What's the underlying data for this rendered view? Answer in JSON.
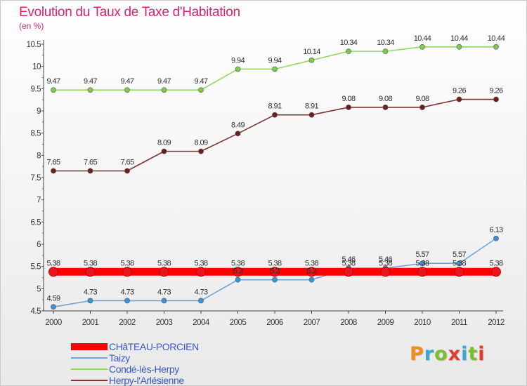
{
  "title": "Evolution du Taux de Taxe d'Habitation",
  "unit": "(en %)",
  "brand": {
    "text": "Proxiti",
    "colors": [
      "#f08c1c",
      "#3aa7d8",
      "#7bbf2a",
      "#e43c2a",
      "#3aa7d8",
      "#7bbf2a",
      "#e43c2a"
    ]
  },
  "chart_data": {
    "type": "line",
    "title": "Evolution du Taux de Taxe d'Habitation",
    "ylabel": "(en %)",
    "xlabel": "",
    "x": [
      "2000",
      "2001",
      "2002",
      "2003",
      "2004",
      "2005",
      "2006",
      "2007",
      "2008",
      "2009",
      "2010",
      "2011",
      "2012"
    ],
    "ylim": [
      4.5,
      10.5
    ],
    "yticks": [
      "4.5",
      "5",
      "5.5",
      "6",
      "6.5",
      "7",
      "7.5",
      "8",
      "8.5",
      "9",
      "9.5",
      "10",
      "10.5"
    ],
    "grid": false,
    "legend_position": "bottom-left",
    "series": [
      {
        "name": "CHâTEAU-PORCIEN",
        "color": "#ff0000",
        "marker_color": "#e8141e",
        "values": [
          5.38,
          5.38,
          5.38,
          5.38,
          5.38,
          5.38,
          5.38,
          5.38,
          5.38,
          5.38,
          5.38,
          5.38,
          5.38
        ],
        "labels": [
          "5.38",
          "5.38",
          "5.38",
          "5.38",
          "5.38",
          "5.38",
          "5.38",
          "5.38",
          "5.38",
          "5.38",
          "5.38",
          "5.38",
          "5.38"
        ]
      },
      {
        "name": "Taizy",
        "color": "#6ea3d4",
        "marker_color": "#3d8fd6",
        "values": [
          4.59,
          4.73,
          4.73,
          4.73,
          4.73,
          5.2,
          5.2,
          5.2,
          5.46,
          5.46,
          5.57,
          5.57,
          6.13
        ],
        "labels": [
          "4.59",
          "4.73",
          "4.73",
          "4.73",
          "4.73",
          "5.2",
          "5.2",
          "5.2",
          "5.46",
          "5.46",
          "5.57",
          "5.57",
          "6.13"
        ]
      },
      {
        "name": "Condé-lès-Herpy",
        "color": "#93d863",
        "marker_color": "#7cc94b",
        "values": [
          9.47,
          9.47,
          9.47,
          9.47,
          9.47,
          9.94,
          9.94,
          10.14,
          10.34,
          10.34,
          10.44,
          10.44,
          10.44
        ],
        "labels": [
          "9.47",
          "9.47",
          "9.47",
          "9.47",
          "9.47",
          "9.94",
          "9.94",
          "10.14",
          "10.34",
          "10.34",
          "10.44",
          "10.44",
          "10.44"
        ]
      },
      {
        "name": "Herpy-l'Arlésienne",
        "color": "#7e3535",
        "marker_color": "#6b1e1e",
        "values": [
          7.65,
          7.65,
          7.65,
          8.09,
          8.09,
          8.49,
          8.91,
          8.91,
          9.08,
          9.08,
          9.08,
          9.26,
          9.26
        ],
        "labels": [
          "7.65",
          "7.65",
          "7.65",
          "8.09",
          "8.09",
          "8.49",
          "8.91",
          "8.91",
          "9.08",
          "9.08",
          "9.08",
          "9.26",
          "9.26"
        ]
      }
    ]
  }
}
